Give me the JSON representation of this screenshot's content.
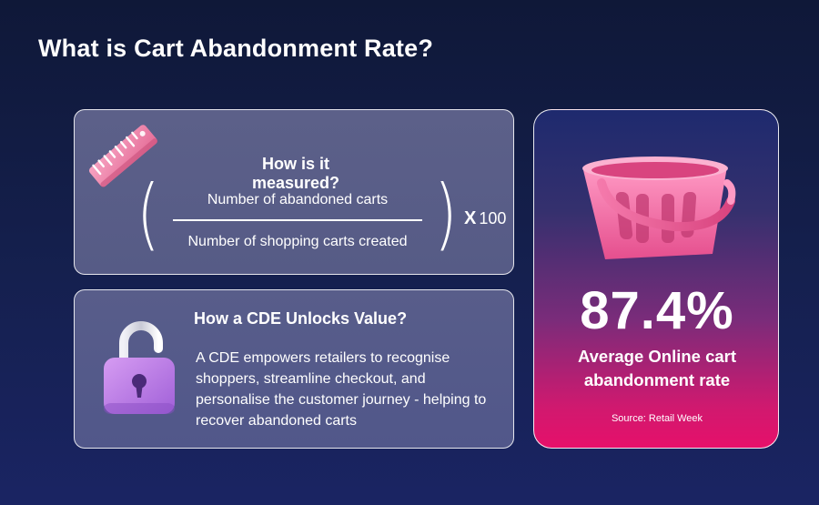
{
  "title": "What is Cart Abandonment Rate?",
  "measure": {
    "heading": "How is it measured?",
    "numerator": "Number of abandoned carts",
    "denominator": "Number of shopping carts created",
    "multiplier_symbol": "X",
    "multiplier_value": "100",
    "icon": "ruler-icon"
  },
  "cde": {
    "heading": "How a CDE Unlocks Value?",
    "body": "A CDE empowers retailers to recognise shoppers, streamline checkout, and personalise the customer journey - helping to recover abandoned carts",
    "icon": "open-padlock-icon"
  },
  "stat": {
    "value": "87.4%",
    "caption_line1": "Average Online cart",
    "caption_line2": "abandonment rate",
    "source": "Source: Retail Week",
    "icon": "shopping-basket-icon"
  },
  "colors": {
    "accent_pink": "#e6106a",
    "background_navy": "#15204f"
  }
}
